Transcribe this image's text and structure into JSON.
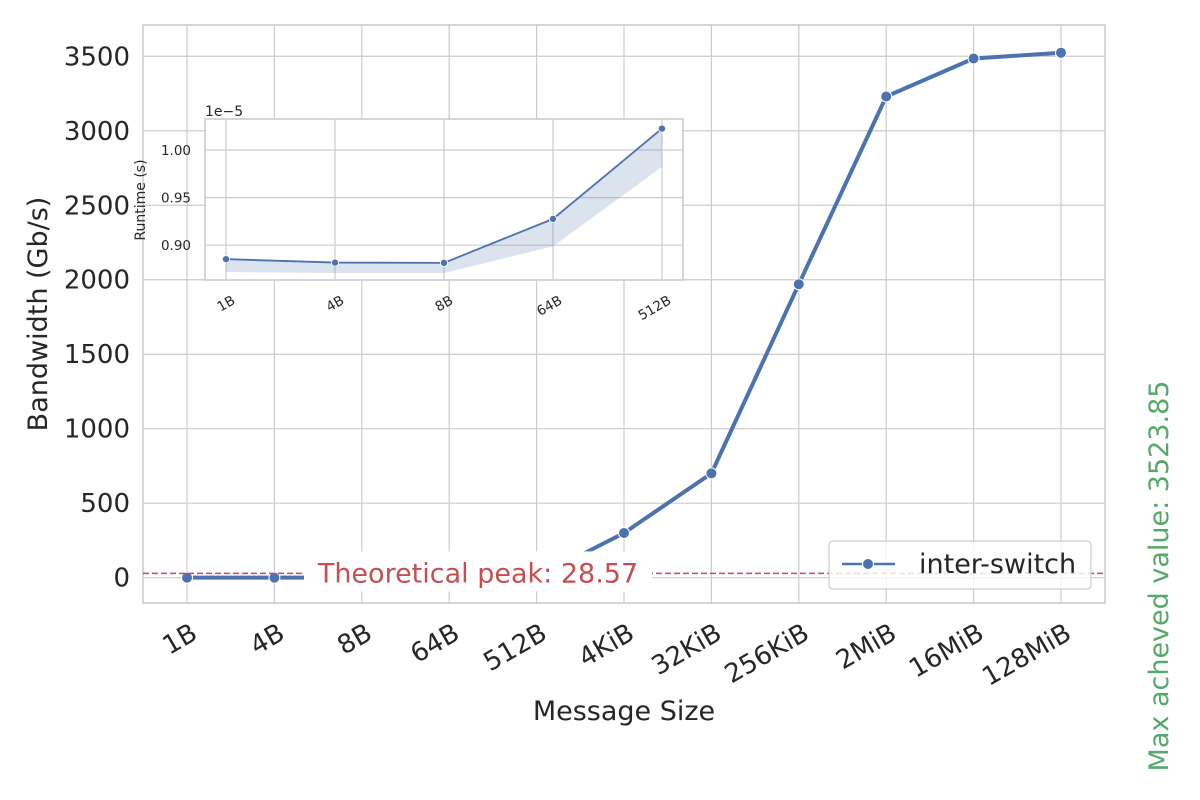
{
  "chart_data": [
    {
      "type": "line",
      "xlabel": "Message Size",
      "ylabel": "Bandwidth (Gb/s)",
      "categories": [
        "1B",
        "4B",
        "8B",
        "64B",
        "512B",
        "4KiB",
        "32KiB",
        "256KiB",
        "2MiB",
        "16MiB",
        "128MiB"
      ],
      "ylim": [
        -170,
        3710
      ],
      "yticks": [
        0,
        500,
        1000,
        1500,
        2000,
        2500,
        3000,
        3500
      ],
      "ytick_labels": [
        "0",
        "500",
        "1000",
        "1500",
        "2000",
        "2500",
        "3000",
        "3500"
      ],
      "grid": true,
      "legend": "lower-right",
      "series": [
        {
          "name": "inter-switch",
          "color": "#4c72b0",
          "values": [
            0.001,
            0.004,
            0.008,
            0.06,
            0.5,
            300,
            700,
            1970,
            3230,
            3485,
            3524
          ],
          "ci_low": [
            0,
            0,
            0,
            0.05,
            0.4,
            285,
            685,
            1960,
            3225,
            3480,
            3520
          ],
          "ci_high": [
            0.002,
            0.005,
            0.01,
            0.07,
            0.6,
            310,
            715,
            1980,
            3235,
            3490,
            3528
          ]
        }
      ],
      "reference_line": {
        "value": 28.57,
        "label": "Theoretical peak: 28.57",
        "color": "#c44e52"
      },
      "side_annotation": {
        "text": "Max acheved value: 3523.85",
        "color": "#55a868"
      }
    },
    {
      "type": "line",
      "inset": true,
      "ylabel": "Runtime (s)",
      "categories": [
        "1B",
        "4B",
        "8B",
        "64B",
        "512B"
      ],
      "ylim": [
        0.8634,
        1.0326
      ],
      "yticks": [
        0.9,
        0.95,
        1.0
      ],
      "ytick_labels": [
        "0.90",
        "0.95",
        "1.00"
      ],
      "offset_label": "1e−5",
      "grid": true,
      "series": [
        {
          "name": "",
          "color": "#4c72b0",
          "values": [
            0.8853,
            0.8817,
            0.8814,
            0.9276,
            1.0225
          ],
          "ci_low": [
            0.8718,
            0.8708,
            0.8707,
            0.8988,
            0.9824
          ],
          "ci_high": [
            0.8866,
            0.8824,
            0.8821,
            0.9291,
            1.0225
          ]
        }
      ]
    }
  ]
}
